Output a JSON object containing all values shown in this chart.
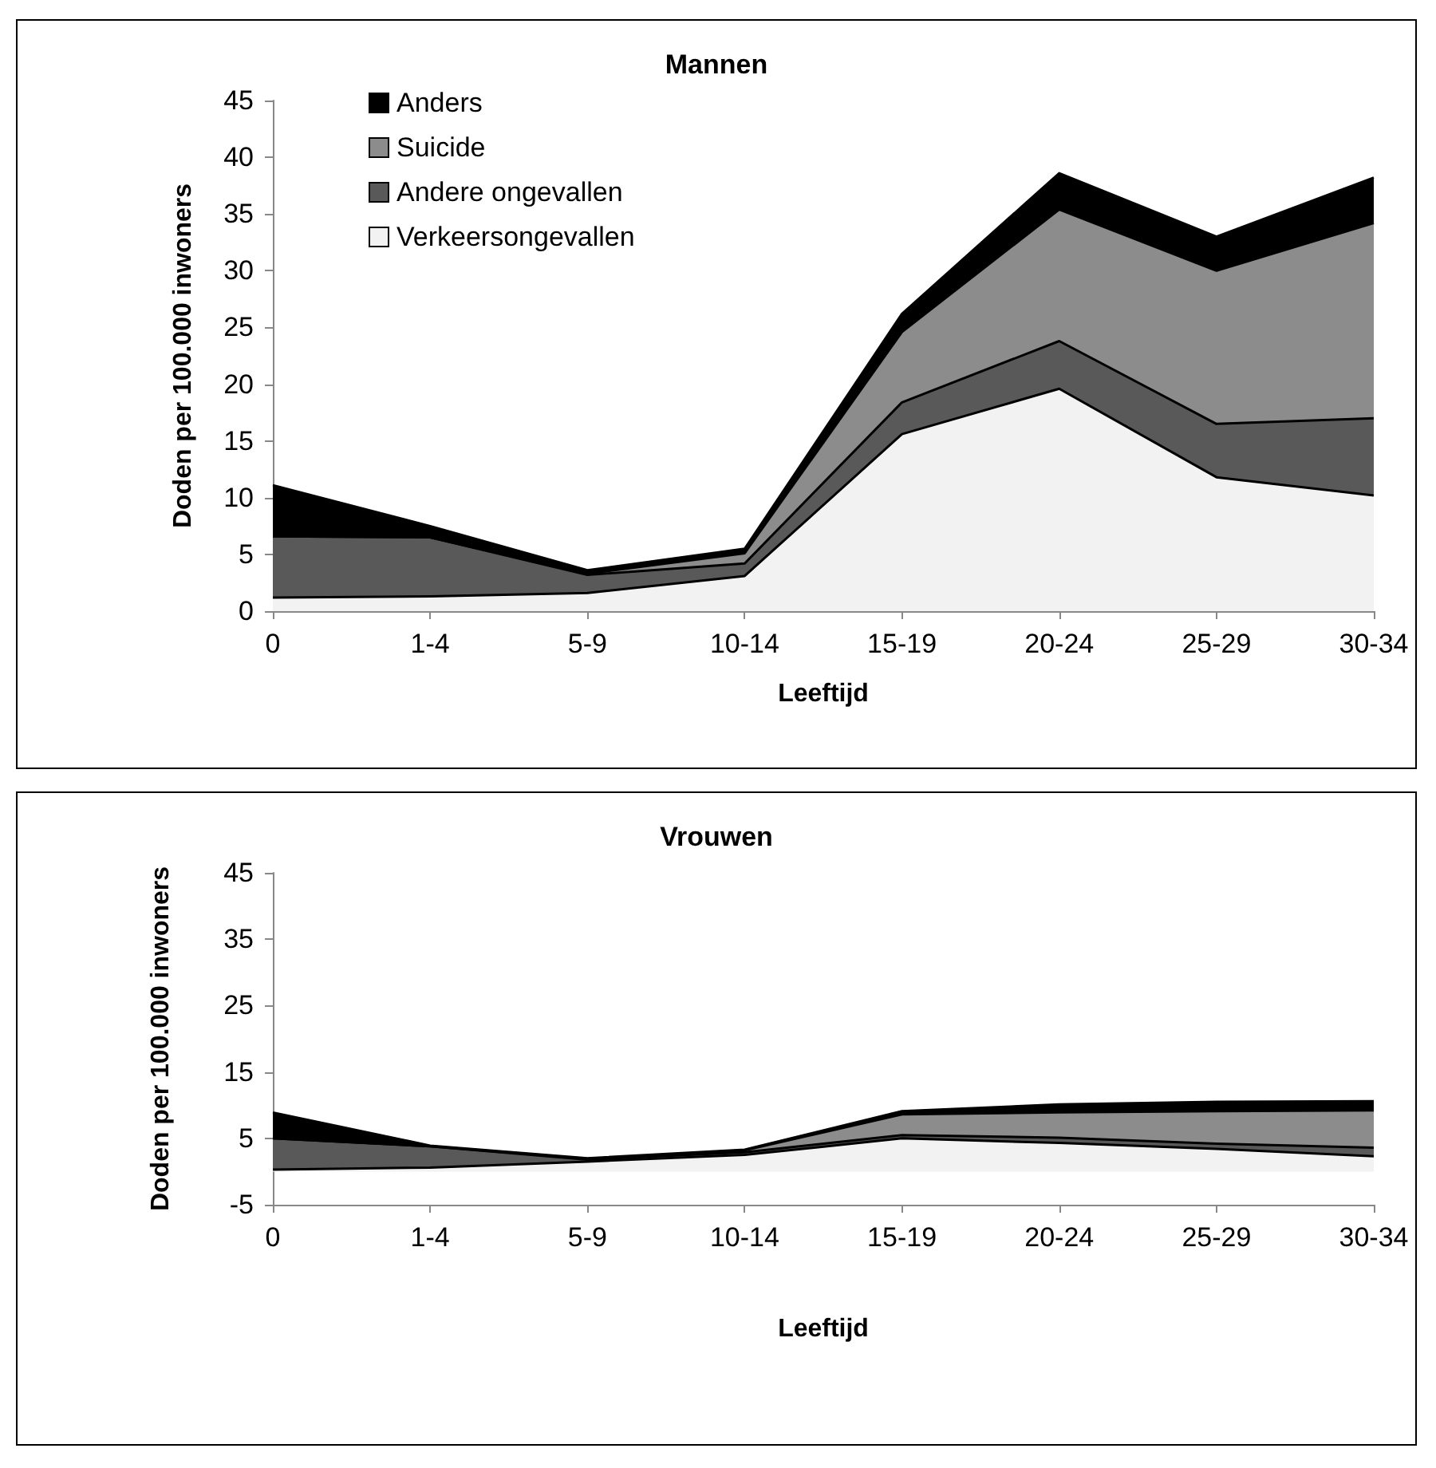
{
  "chart_data": [
    {
      "type": "area",
      "stacked": true,
      "title": "Mannen",
      "xlabel": "Leeftijd",
      "ylabel": "Doden per 100.000 inwoners",
      "categories": [
        "0",
        "1-4",
        "5-9",
        "10-14",
        "15-19",
        "20-24",
        "25-29",
        "30-34"
      ],
      "series": [
        {
          "name": "Verkeersongevallen",
          "color": "#f2f2f2",
          "values": [
            1.2,
            1.3,
            1.6,
            3.1,
            15.6,
            19.6,
            11.8,
            10.2
          ]
        },
        {
          "name": "Andere ongevallen",
          "color": "#595959",
          "values": [
            5.4,
            5.2,
            1.6,
            1.1,
            2.8,
            4.2,
            4.7,
            6.8
          ]
        },
        {
          "name": "Suicide",
          "color": "#8c8c8c",
          "values": [
            0,
            0,
            0.1,
            0.9,
            6.2,
            11.6,
            13.5,
            17.2
          ]
        },
        {
          "name": "Anders",
          "color": "#000000",
          "values": [
            4.5,
            1.0,
            0.3,
            0.4,
            1.6,
            3.2,
            3.0,
            4.0
          ]
        }
      ],
      "ylim": [
        0,
        45
      ],
      "yticks": [
        0,
        5,
        10,
        15,
        20,
        25,
        30,
        35,
        40,
        45
      ],
      "legend": "top left"
    },
    {
      "type": "area",
      "stacked": true,
      "title": "Vrouwen",
      "xlabel": "Leeftijd",
      "ylabel": "Doden per 100.000 inwoners",
      "categories": [
        "0",
        "1-4",
        "5-9",
        "10-14",
        "15-19",
        "20-24",
        "25-29",
        "30-34"
      ],
      "series": [
        {
          "color": "#f2f2f2",
          "values": [
            0.3,
            0.6,
            1.5,
            2.5,
            5.0,
            4.3,
            3.4,
            2.3
          ]
        },
        {
          "color": "#595959",
          "values": [
            4.7,
            3.2,
            0.3,
            0.4,
            0.5,
            0.8,
            0.8,
            1.3
          ]
        },
        {
          "color": "#8c8c8c",
          "values": [
            0,
            0,
            0.1,
            0.3,
            3.1,
            3.8,
            4.9,
            5.6
          ]
        },
        {
          "color": "#000000",
          "values": [
            3.9,
            0.1,
            0.1,
            0.1,
            0.5,
            1.2,
            1.4,
            1.4
          ]
        }
      ],
      "ylim": [
        -5,
        45
      ],
      "yticks": [
        -5,
        5,
        15,
        25,
        35,
        45
      ]
    }
  ]
}
